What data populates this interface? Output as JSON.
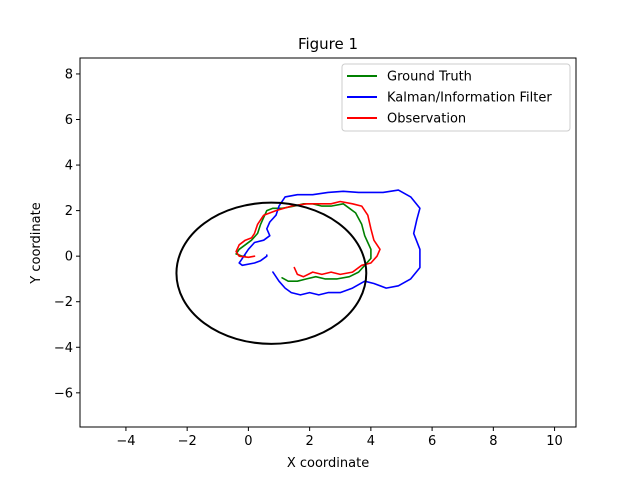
{
  "chart_data": {
    "type": "line",
    "title": "Figure 1",
    "xlabel": "X coordinate",
    "ylabel": "Y coordinate",
    "xlim": [
      -5.5,
      10.7
    ],
    "ylim": [
      -7.5,
      8.7
    ],
    "x_ticks": [
      -4,
      -2,
      0,
      2,
      4,
      6,
      8,
      10
    ],
    "y_ticks": [
      -6,
      -4,
      -2,
      0,
      2,
      4,
      6,
      8
    ],
    "x_tick_labels": [
      "−4",
      "−2",
      "0",
      "2",
      "4",
      "6",
      "8",
      "10"
    ],
    "y_tick_labels": [
      "−6",
      "−4",
      "−2",
      "0",
      "2",
      "4",
      "6",
      "8"
    ],
    "grid": false,
    "legend_position": "top-right",
    "series": [
      {
        "name": "Ground Truth",
        "color": "#008000",
        "x": [
          1.1,
          1.3,
          1.6,
          1.9,
          2.2,
          2.5,
          2.9,
          3.3,
          3.6,
          3.8,
          4.0,
          4.0,
          3.9,
          3.8,
          3.7,
          3.5,
          3.1,
          2.7,
          2.4,
          2.1,
          1.8,
          1.5,
          1.1,
          0.8,
          0.6,
          0.5,
          0.4,
          0.3,
          0.1,
          -0.1,
          -0.3,
          -0.4,
          -0.2,
          -0.1
        ],
        "y": [
          -0.95,
          -1.1,
          -1.1,
          -1.0,
          -0.9,
          -1.0,
          -1.0,
          -0.9,
          -0.7,
          -0.4,
          -0.1,
          0.3,
          0.6,
          0.9,
          1.4,
          1.9,
          2.3,
          2.2,
          2.2,
          2.3,
          2.3,
          2.2,
          2.1,
          2.1,
          2.0,
          1.7,
          1.4,
          1.0,
          0.7,
          0.5,
          0.3,
          0.1,
          0.0,
          0.0
        ]
      },
      {
        "name": "Kalman/Information Filter",
        "color": "#0000ff",
        "x": [
          0.8,
          1.0,
          1.2,
          1.4,
          1.7,
          2.0,
          2.3,
          2.6,
          3.0,
          3.4,
          3.8,
          4.1,
          4.5,
          4.9,
          5.3,
          5.6,
          5.6,
          5.4,
          5.5,
          5.6,
          5.3,
          4.9,
          4.4,
          4.0,
          3.6,
          3.1,
          2.6,
          2.1,
          1.6,
          1.2,
          1.0,
          0.9,
          0.7,
          0.6,
          0.7,
          0.5,
          0.2,
          0.0,
          -0.2,
          -0.3,
          -0.2,
          0.2,
          0.4,
          0.6,
          0.6
        ],
        "y": [
          -0.7,
          -1.1,
          -1.4,
          -1.6,
          -1.7,
          -1.6,
          -1.7,
          -1.6,
          -1.6,
          -1.4,
          -1.1,
          -1.2,
          -1.4,
          -1.3,
          -1.0,
          -0.5,
          0.3,
          1.0,
          1.6,
          2.1,
          2.6,
          2.9,
          2.8,
          2.8,
          2.8,
          2.85,
          2.8,
          2.7,
          2.7,
          2.6,
          2.2,
          1.8,
          1.5,
          1.2,
          0.9,
          0.7,
          0.6,
          0.3,
          -0.1,
          -0.3,
          -0.4,
          -0.3,
          -0.2,
          0.0,
          0.05
        ]
      },
      {
        "name": "Observation",
        "color": "#ff0000",
        "x": [
          1.5,
          1.6,
          1.8,
          2.1,
          2.4,
          2.7,
          3.0,
          3.4,
          3.7,
          4.0,
          4.2,
          4.3,
          4.1,
          4.0,
          3.9,
          3.7,
          3.4,
          3.0,
          2.7,
          2.3,
          1.9,
          1.4,
          0.9,
          0.5,
          0.3,
          0.2,
          0.1,
          -0.1,
          -0.3,
          -0.4,
          -0.3,
          0.0,
          0.2
        ],
        "y": [
          -0.5,
          -0.8,
          -0.9,
          -0.7,
          -0.8,
          -0.7,
          -0.8,
          -0.7,
          -0.4,
          -0.3,
          0.0,
          0.3,
          0.7,
          1.2,
          1.8,
          2.2,
          2.3,
          2.4,
          2.3,
          2.3,
          2.3,
          2.2,
          2.0,
          1.8,
          1.4,
          1.0,
          0.8,
          0.7,
          0.5,
          0.2,
          0.0,
          -0.05,
          0.0
        ]
      },
      {
        "color": "#000000",
        "center_x": 0.75,
        "center_y": -0.75,
        "radius": 3.1,
        "shape": "circle"
      }
    ]
  },
  "legend_entries": [
    {
      "label": "Ground Truth",
      "color": "#008000"
    },
    {
      "label": "Kalman/Information Filter",
      "color": "#0000ff"
    },
    {
      "label": "Observation",
      "color": "#ff0000"
    }
  ]
}
